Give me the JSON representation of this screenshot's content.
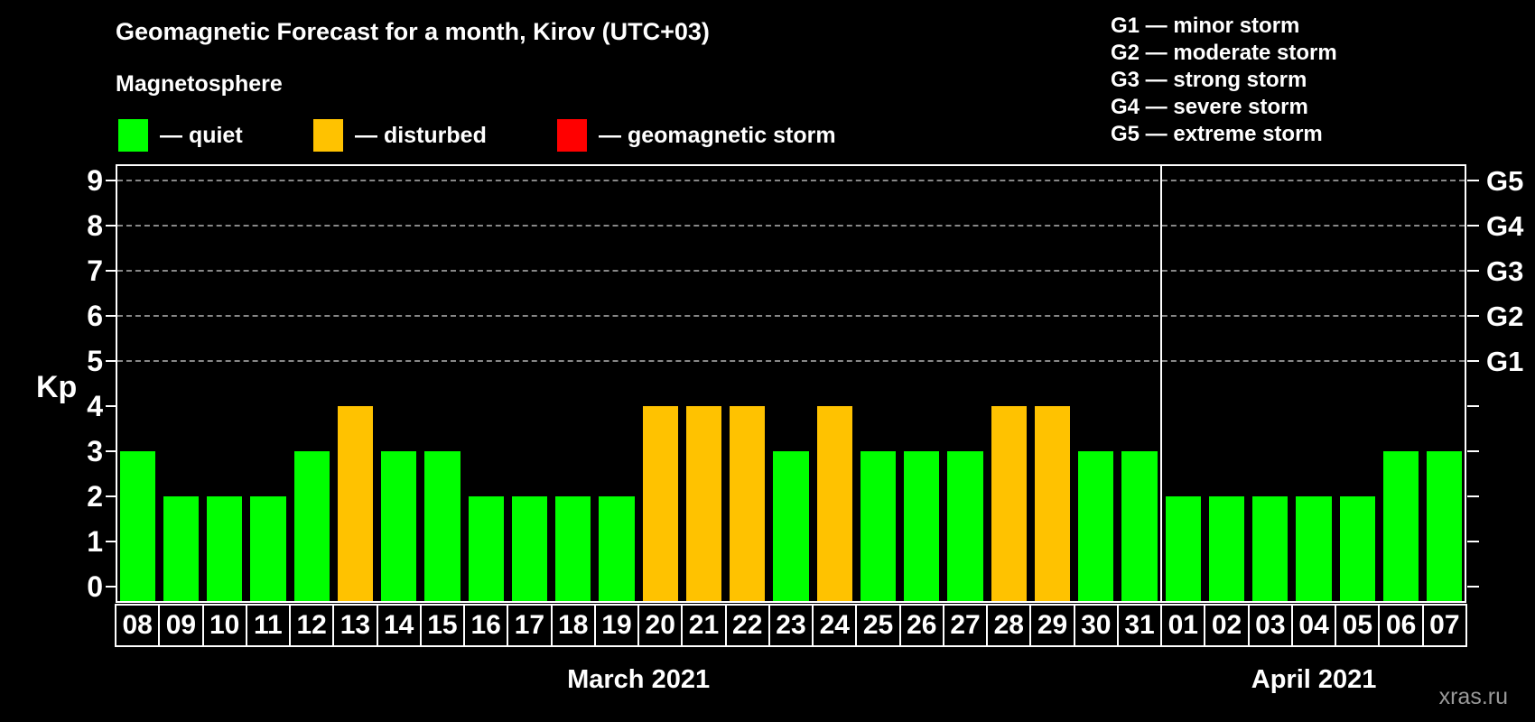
{
  "title": "Geomagnetic Forecast for a month, Kirov (UTC+03)",
  "subtitle": "Magnetosphere",
  "watermark": "xras.ru",
  "legend": {
    "items": [
      {
        "name": "quiet",
        "label": "— quiet",
        "color": "#00ff00"
      },
      {
        "name": "disturbed",
        "label": "— disturbed",
        "color": "#ffc200"
      },
      {
        "name": "geomagnetic-storm",
        "label": "— geomagnetic storm",
        "color": "#ff0000"
      }
    ]
  },
  "g_legend": [
    "G1 — minor storm",
    "G2 — moderate storm",
    "G3 — strong storm",
    "G4 — severe storm",
    "G5 — extreme storm"
  ],
  "chart_data": {
    "type": "bar",
    "title": "Geomagnetic Forecast for a month, Kirov (UTC+03)",
    "ylabel": "Kp",
    "ylim": [
      0,
      9.6
    ],
    "y_ticks": [
      0,
      1,
      2,
      3,
      4,
      5,
      6,
      7,
      8,
      9
    ],
    "gridlines_kp": [
      5,
      6,
      7,
      8,
      9
    ],
    "grid": "dashed horizontal at storm levels only",
    "right_axis": [
      {
        "label": "G1",
        "kp": 5
      },
      {
        "label": "G2",
        "kp": 6
      },
      {
        "label": "G3",
        "kp": 7
      },
      {
        "label": "G4",
        "kp": 8
      },
      {
        "label": "G5",
        "kp": 9
      }
    ],
    "status_colors": {
      "quiet": "#00ff00",
      "disturbed": "#ffc200",
      "storm": "#ff0000"
    },
    "months": [
      {
        "label": "March 2021",
        "days": [
          {
            "day": "08",
            "kp": 3,
            "status": "quiet"
          },
          {
            "day": "09",
            "kp": 2,
            "status": "quiet"
          },
          {
            "day": "10",
            "kp": 2,
            "status": "quiet"
          },
          {
            "day": "11",
            "kp": 2,
            "status": "quiet"
          },
          {
            "day": "12",
            "kp": 3,
            "status": "quiet"
          },
          {
            "day": "13",
            "kp": 4,
            "status": "disturbed"
          },
          {
            "day": "14",
            "kp": 3,
            "status": "quiet"
          },
          {
            "day": "15",
            "kp": 3,
            "status": "quiet"
          },
          {
            "day": "16",
            "kp": 2,
            "status": "quiet"
          },
          {
            "day": "17",
            "kp": 2,
            "status": "quiet"
          },
          {
            "day": "18",
            "kp": 2,
            "status": "quiet"
          },
          {
            "day": "19",
            "kp": 2,
            "status": "quiet"
          },
          {
            "day": "20",
            "kp": 4,
            "status": "disturbed"
          },
          {
            "day": "21",
            "kp": 4,
            "status": "disturbed"
          },
          {
            "day": "22",
            "kp": 4,
            "status": "disturbed"
          },
          {
            "day": "23",
            "kp": 3,
            "status": "quiet"
          },
          {
            "day": "24",
            "kp": 4,
            "status": "disturbed"
          },
          {
            "day": "25",
            "kp": 3,
            "status": "quiet"
          },
          {
            "day": "26",
            "kp": 3,
            "status": "quiet"
          },
          {
            "day": "27",
            "kp": 3,
            "status": "quiet"
          },
          {
            "day": "28",
            "kp": 4,
            "status": "disturbed"
          },
          {
            "day": "29",
            "kp": 4,
            "status": "disturbed"
          },
          {
            "day": "30",
            "kp": 3,
            "status": "quiet"
          },
          {
            "day": "31",
            "kp": 3,
            "status": "quiet"
          }
        ]
      },
      {
        "label": "April 2021",
        "days": [
          {
            "day": "01",
            "kp": 2,
            "status": "quiet"
          },
          {
            "day": "02",
            "kp": 2,
            "status": "quiet"
          },
          {
            "day": "03",
            "kp": 2,
            "status": "quiet"
          },
          {
            "day": "04",
            "kp": 2,
            "status": "quiet"
          },
          {
            "day": "05",
            "kp": 2,
            "status": "quiet"
          },
          {
            "day": "06",
            "kp": 3,
            "status": "quiet"
          },
          {
            "day": "07",
            "kp": 3,
            "status": "quiet"
          }
        ]
      }
    ]
  }
}
